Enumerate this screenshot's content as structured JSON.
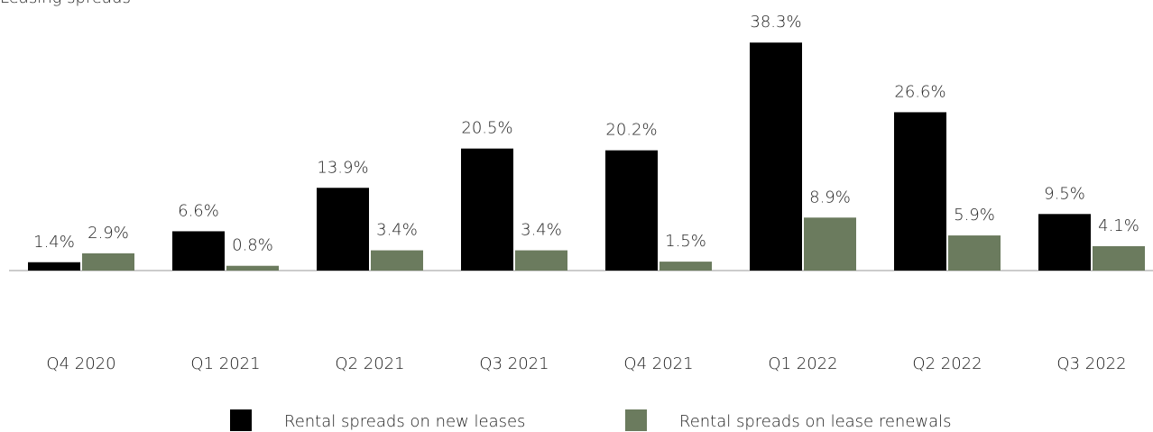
{
  "chart_data": {
    "type": "bar",
    "title": "Leasing spreads",
    "categories": [
      "Q4 2020",
      "Q1 2021",
      "Q2 2021",
      "Q3 2021",
      "Q4 2021",
      "Q1 2022",
      "Q2 2022",
      "Q3 2022"
    ],
    "series": [
      {
        "name": "Rental spreads on new leases",
        "color": "#000000",
        "values": [
          1.4,
          6.6,
          13.9,
          20.5,
          20.2,
          38.3,
          26.6,
          9.5
        ],
        "value_labels": [
          "1.4%",
          "6.6%",
          "13.9%",
          "20.5%",
          "20.2%",
          "38.3%",
          "26.6%",
          "9.5%"
        ]
      },
      {
        "name": "Rental spreads on lease renewals",
        "color": "#6b7b5e",
        "values": [
          2.9,
          0.8,
          3.4,
          3.4,
          1.5,
          8.9,
          5.9,
          4.1
        ],
        "value_labels": [
          "2.9%",
          "0.8%",
          "3.4%",
          "3.4%",
          "1.5%",
          "8.9%",
          "5.9%",
          "4.1%"
        ]
      }
    ],
    "ylim": [
      0,
      40
    ]
  }
}
